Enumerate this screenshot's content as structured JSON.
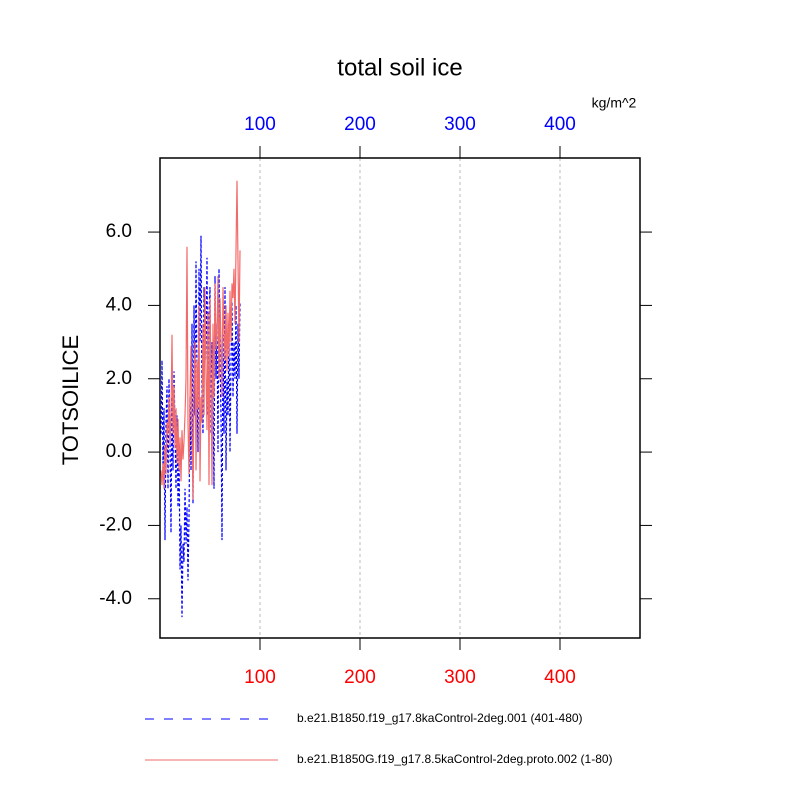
{
  "chart_data": {
    "type": "line",
    "title": "total soil ice",
    "ylabel": "TOTSOILICE",
    "x2label": "kg/m^2",
    "x": [
      1,
      2,
      3,
      4,
      5,
      6,
      7,
      8,
      9,
      10,
      11,
      12,
      13,
      14,
      15,
      16,
      17,
      18,
      19,
      20,
      21,
      22,
      23,
      24,
      25,
      26,
      27,
      28,
      29,
      30,
      31,
      32,
      33,
      34,
      35,
      36,
      37,
      38,
      39,
      40,
      41,
      42,
      43,
      44,
      45,
      46,
      47,
      48,
      49,
      50,
      51,
      52,
      53,
      54,
      55,
      56,
      57,
      58,
      59,
      60,
      61,
      62,
      63,
      64,
      65,
      66,
      67,
      68,
      69,
      70,
      71,
      72,
      73,
      74,
      75,
      76,
      77,
      78,
      79,
      80
    ],
    "series": [
      {
        "name": "b.e21.B1850.f19_g17.8kaControl-2deg.001 (401-480)",
        "color": "#0000ff",
        "dash": true,
        "values": [
          0.5,
          2.5,
          -0.5,
          1.2,
          -2.4,
          0.8,
          1.8,
          -1.0,
          2.0,
          0.3,
          -2.2,
          1.5,
          -0.5,
          2.2,
          0.6,
          -1.0,
          1.0,
          -1.5,
          0.2,
          -3.2,
          -2.0,
          -4.5,
          -2.5,
          -3.0,
          -1.0,
          -2.5,
          -1.5,
          -3.5,
          -1.8,
          1.5,
          -0.5,
          3.5,
          -1.4,
          4.0,
          1.0,
          5.2,
          2.0,
          0.0,
          5.0,
          3.0,
          5.9,
          1.5,
          0.5,
          4.5,
          3.5,
          2.5,
          5.3,
          1.0,
          3.8,
          4.5,
          0.5,
          3.0,
          1.5,
          -1.0,
          4.8,
          2.0,
          3.5,
          0.0,
          5.0,
          2.5,
          1.0,
          -2.4,
          3.2,
          0.5,
          4.5,
          -0.5,
          2.0,
          1.0,
          3.5,
          0.0,
          2.5,
          4.1,
          1.5,
          3.0,
          2.0,
          4.0,
          0.5,
          3.5,
          2.0,
          4.1
        ]
      },
      {
        "name": "b.e21.B1850G.f19_g17.8.5kaControl-2deg.proto.002 (1-80)",
        "color": "#f26b6b",
        "dash": false,
        "values": [
          -0.5,
          -0.9,
          -0.3,
          -1.0,
          0.2,
          -0.6,
          0.8,
          0.5,
          1.5,
          0.2,
          1.0,
          3.2,
          0.5,
          1.8,
          0.1,
          1.2,
          -0.3,
          0.9,
          -0.5,
          0.4,
          -0.8,
          0.6,
          -0.2,
          0.3,
          1.0,
          2.0,
          5.6,
          0.8,
          -0.6,
          1.5,
          2.9,
          0.5,
          -1.3,
          1.8,
          3.0,
          -0.5,
          2.5,
          1.2,
          4.0,
          -0.8,
          1.5,
          0.8,
          3.5,
          1.0,
          4.5,
          2.2,
          0.6,
          3.8,
          -0.9,
          4.2,
          2.0,
          -0.9,
          3.5,
          1.5,
          4.6,
          2.8,
          3.2,
          4.8,
          2.0,
          4.2,
          3.0,
          1.5,
          4.5,
          3.3,
          2.5,
          4.0,
          2.2,
          3.8,
          2.6,
          4.4,
          3.0,
          4.6,
          4.2,
          5.0,
          3.5,
          5.5,
          7.4,
          5.2,
          3.0,
          5.5
        ]
      }
    ],
    "xlim": [
      0,
      480
    ],
    "xticks": [
      100,
      200,
      300,
      400
    ],
    "xtick_color": "#ff0000",
    "x2lim": [
      0,
      480
    ],
    "x2ticks": [
      100,
      200,
      300,
      400
    ],
    "x2tick_color": "#0000ff",
    "ylim": [
      -5.07,
      8.02
    ],
    "yticks": [
      {
        "value": -4,
        "label": "-4.0"
      },
      {
        "value": -2,
        "label": "-2.0"
      },
      {
        "value": 0,
        "label": "0.0"
      },
      {
        "value": 2,
        "label": "2.0"
      },
      {
        "value": 4,
        "label": "4.0"
      },
      {
        "value": 6,
        "label": "6.0"
      }
    ],
    "xgrid": true,
    "legend": "bottom"
  }
}
